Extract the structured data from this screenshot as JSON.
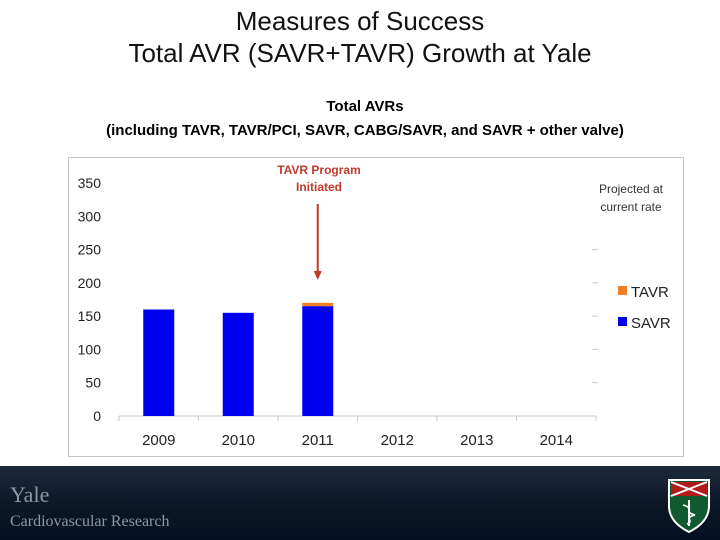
{
  "slide": {
    "title_line1": "Measures of Success",
    "title_line2": "Total AVR (SAVR+TAVR) Growth at Yale",
    "subtitle_line1": "Total AVRs",
    "subtitle_line2": "(including TAVR, TAVR/PCI, SAVR, CABG/SAVR, and SAVR + other valve)"
  },
  "annotation": {
    "line1": "TAVR Program",
    "line2": "Initiated"
  },
  "projection": {
    "line1": "Projected at",
    "line2": "current rate"
  },
  "footer": {
    "org_name": "Yale",
    "org_sub": "Cardiovascular Research"
  },
  "colors": {
    "savr": "#0000ee",
    "tavr": "#f07e26",
    "arrow": "#c0392b"
  },
  "chart_data": {
    "type": "bar",
    "stacked": true,
    "categories": [
      "2009",
      "2010",
      "2011",
      "2012",
      "2013",
      "2014"
    ],
    "series": [
      {
        "name": "SAVR",
        "values": [
          160,
          155,
          165,
          null,
          null,
          null
        ],
        "color": "#0000ee"
      },
      {
        "name": "TAVR",
        "values": [
          0,
          0,
          5,
          null,
          null,
          null
        ],
        "color": "#f07e26"
      }
    ],
    "ylim": [
      0,
      350
    ],
    "yticks": [
      0,
      50,
      100,
      150,
      200,
      250,
      300,
      350
    ],
    "grid": false,
    "legend": "right",
    "annotation_category": "2011"
  }
}
